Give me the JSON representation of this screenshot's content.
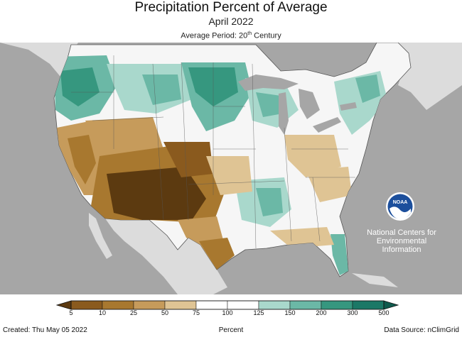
{
  "header": {
    "title": "Precipitation Percent of Average",
    "month": "April 2022",
    "period_prefix": "Average Period: 20",
    "period_sup": "th",
    "period_suffix": " Century"
  },
  "logo": {
    "name": "NOAA",
    "line1": "National Centers for",
    "line2": "Environmental",
    "line3": "Information"
  },
  "legend": {
    "ticks": [
      "5",
      "10",
      "25",
      "50",
      "75",
      "100",
      "125",
      "150",
      "200",
      "300",
      "500"
    ],
    "colors": [
      "#8a5a1e",
      "#a8782f",
      "#c69b5b",
      "#dfc494",
      "#ffffff",
      "#ffffff",
      "#a9d8cc",
      "#6bb8a6",
      "#36977f",
      "#1b7866"
    ],
    "unit": "Percent"
  },
  "footer": {
    "created": "Created: Thu May 05 2022",
    "source": "Data Source: nClimGrid"
  },
  "colors": {
    "ocean": "#a6a6a6",
    "land": "#dcdcdc",
    "normal": "#f6f6f6",
    "lakes": "#a6a6a6"
  }
}
